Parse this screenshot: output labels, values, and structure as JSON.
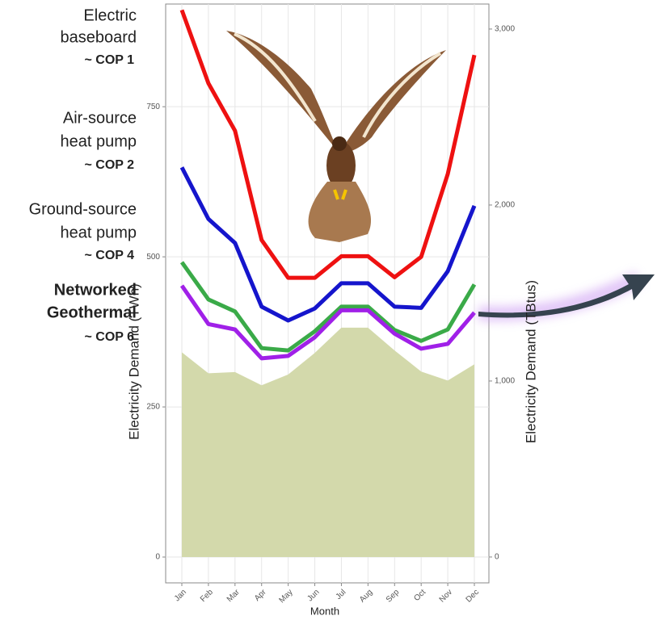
{
  "chart_data": {
    "type": "line",
    "categories": [
      "Jan",
      "Feb",
      "Mar",
      "Apr",
      "May",
      "Jun",
      "Jul",
      "Aug",
      "Sep",
      "Oct",
      "Nov",
      "Dec"
    ],
    "x_label": "Month",
    "y_label": "Electricity Demand (TWh)",
    "y2_label": "Electricity Demand (TBtus)",
    "ylim": [
      -43,
      921
    ],
    "yticks": [
      0,
      250,
      500,
      750
    ],
    "y2lim": [
      -147,
      3142
    ],
    "y2ticks": [
      0,
      {
        "value": 1000,
        "label": "1,000"
      },
      {
        "value": 2000,
        "label": "2,000"
      },
      {
        "value": 3000,
        "label": "3,000"
      }
    ],
    "grid": true,
    "series": [
      {
        "label": [
          "Electric",
          "baseboard"
        ],
        "note": "~ COP 1",
        "color": "#ee1111",
        "values": [
          911,
          789,
          710,
          528,
          465,
          465,
          501,
          501,
          466,
          500,
          638,
          836
        ]
      },
      {
        "label": [
          "Air-source",
          "heat pump"
        ],
        "note": "~ COP 2",
        "color": "#1515cc",
        "values": [
          649,
          563,
          523,
          417,
          394,
          414,
          456,
          456,
          417,
          415,
          476,
          585
        ]
      },
      {
        "label": [
          "Ground-source",
          "heat pump"
        ],
        "note": "~ COP 4",
        "color": "#3aaa48",
        "values": [
          491,
          429,
          409,
          348,
          344,
          376,
          417,
          417,
          378,
          360,
          379,
          454
        ]
      },
      {
        "label": [
          "Networked",
          "Geothermal"
        ],
        "note": "~ COP 6",
        "color": "#a020e8",
        "values": [
          452,
          388,
          379,
          331,
          335,
          366,
          411,
          411,
          372,
          347,
          355,
          407
        ]
      },
      {
        "type": "area",
        "color": "#d3d9ab",
        "values": [
          341,
          306,
          308,
          286,
          304,
          340,
          382,
          382,
          344,
          309,
          294,
          321
        ]
      }
    ]
  }
}
